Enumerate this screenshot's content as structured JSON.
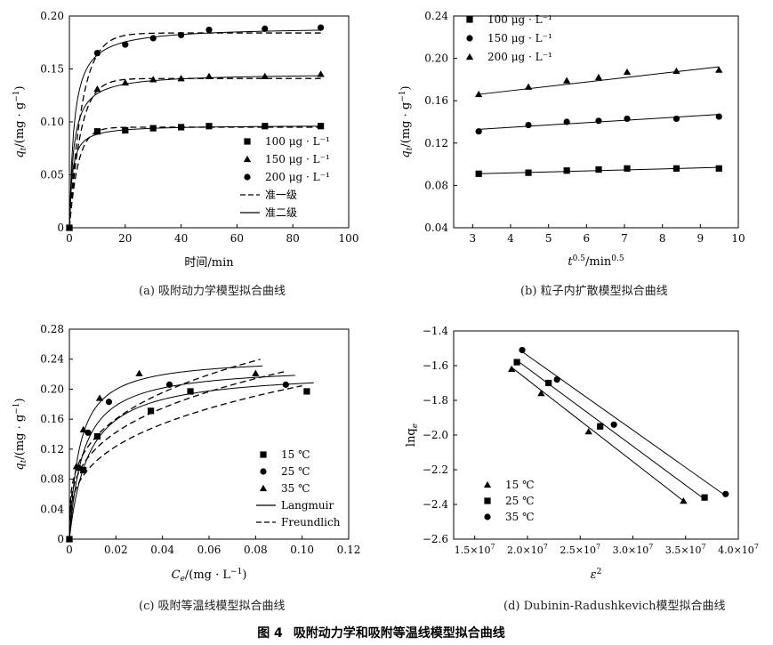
{
  "figure": {
    "number_label": "图 4",
    "title": "吸附动力学和吸附等温线模型拟合曲线"
  },
  "chart_data": [
    {
      "id": "a",
      "type": "line",
      "caption": "(a) 吸附动力学模型拟合曲线",
      "xlabel": "时间/min",
      "ylabel_main": "q",
      "ylabel_sub": "t",
      "ylabel_unit": "/(mg · g",
      "ylabel_sup": "−1",
      "ylabel_close": ")",
      "xlim": [
        0,
        100
      ],
      "ylim": [
        0,
        0.2
      ],
      "xticks": [
        0,
        20,
        40,
        60,
        80,
        100
      ],
      "xtick_labels": [
        "0",
        "20",
        "40",
        "60",
        "80",
        "100"
      ],
      "yticks": [
        0,
        0.05,
        0.1,
        0.15,
        0.2
      ],
      "ytick_labels": [
        "0",
        "0.05",
        "0.10",
        "0.15",
        "0.20"
      ],
      "legend_position": "lower-right",
      "legend": [
        {
          "marker": "square",
          "label": "100 μg · L⁻¹"
        },
        {
          "marker": "triangle",
          "label": "150 μg · L⁻¹"
        },
        {
          "marker": "circle",
          "label": "200 μg · L⁻¹"
        },
        {
          "line": "dashed",
          "label": "准一级"
        },
        {
          "line": "solid",
          "label": "准二级"
        }
      ],
      "series": [
        {
          "name": "100 μg · L⁻¹",
          "marker": "square",
          "points": [
            [
              0,
              0
            ],
            [
              10,
              0.091
            ],
            [
              20,
              0.092
            ],
            [
              30,
              0.094
            ],
            [
              40,
              0.095
            ],
            [
              50,
              0.096
            ],
            [
              70,
              0.096
            ],
            [
              90,
              0.096
            ]
          ],
          "pfo": {
            "qe": 0.095,
            "k": 0.32
          },
          "pso": {
            "qe": 0.097,
            "k": 10.5
          }
        },
        {
          "name": "150 μg · L⁻¹",
          "marker": "triangle",
          "points": [
            [
              0,
              0
            ],
            [
              10,
              0.131
            ],
            [
              20,
              0.137
            ],
            [
              30,
              0.14
            ],
            [
              40,
              0.141
            ],
            [
              50,
              0.143
            ],
            [
              70,
              0.143
            ],
            [
              90,
              0.145
            ]
          ],
          "pfo": {
            "qe": 0.141,
            "k": 0.25
          },
          "pso": {
            "qe": 0.146,
            "k": 4.5
          }
        },
        {
          "name": "200 μg · L⁻¹",
          "marker": "circle",
          "points": [
            [
              0,
              0
            ],
            [
              10,
              0.165
            ],
            [
              20,
              0.173
            ],
            [
              30,
              0.179
            ],
            [
              40,
              0.182
            ],
            [
              50,
              0.187
            ],
            [
              70,
              0.188
            ],
            [
              90,
              0.189
            ]
          ],
          "pfo": {
            "qe": 0.184,
            "k": 0.22
          },
          "pso": {
            "qe": 0.19,
            "k": 3.2
          }
        }
      ]
    },
    {
      "id": "b",
      "type": "scatter",
      "caption": "(b) 粒子内扩散模型拟合曲线",
      "xlabel_main": "t",
      "xlabel_sup": "0.5",
      "xlabel_rest": "/min",
      "xlabel_sup2": "0.5",
      "ylabel_main": "q",
      "ylabel_sub": "t",
      "ylabel_unit": "/(mg · g",
      "ylabel_sup": "−1",
      "ylabel_close": ")",
      "xlim": [
        2.5,
        10
      ],
      "ylim": [
        0.04,
        0.24
      ],
      "xticks": [
        3,
        4,
        5,
        6,
        7,
        8,
        9,
        10
      ],
      "xtick_labels": [
        "3",
        "4",
        "5",
        "6",
        "7",
        "8",
        "9",
        "10"
      ],
      "yticks": [
        0.04,
        0.08,
        0.12,
        0.16,
        0.2,
        0.24
      ],
      "ytick_labels": [
        "0.04",
        "0.08",
        "0.12",
        "0.16",
        "0.20",
        "0.24"
      ],
      "legend_position": "top-left",
      "legend": [
        {
          "marker": "square",
          "label": "100 μg · L⁻¹"
        },
        {
          "marker": "circle",
          "label": "150 μg · L⁻¹"
        },
        {
          "marker": "triangle",
          "label": "200 μg · L⁻¹"
        }
      ],
      "series": [
        {
          "name": "100 μg · L⁻¹",
          "marker": "square",
          "x": [
            3.16,
            4.47,
            5.48,
            6.32,
            7.07,
            8.37,
            9.49
          ],
          "y": [
            0.091,
            0.092,
            0.094,
            0.095,
            0.096,
            0.096,
            0.096
          ],
          "fit": [
            [
              3.16,
              0.091
            ],
            [
              9.49,
              0.097
            ]
          ]
        },
        {
          "name": "150 μg · L⁻¹",
          "marker": "circle",
          "x": [
            3.16,
            4.47,
            5.48,
            6.32,
            7.07,
            8.37,
            9.49
          ],
          "y": [
            0.131,
            0.137,
            0.14,
            0.141,
            0.143,
            0.143,
            0.145
          ],
          "fit": [
            [
              3.16,
              0.133
            ],
            [
              9.49,
              0.147
            ]
          ]
        },
        {
          "name": "200 μg · L⁻¹",
          "marker": "triangle",
          "x": [
            3.16,
            4.47,
            5.48,
            6.32,
            7.07,
            8.37,
            9.49
          ],
          "y": [
            0.166,
            0.173,
            0.179,
            0.182,
            0.187,
            0.188,
            0.189
          ],
          "fit": [
            [
              3.16,
              0.166
            ],
            [
              9.49,
              0.192
            ]
          ]
        }
      ]
    },
    {
      "id": "c",
      "type": "line",
      "caption": "(c) 吸附等温线模型拟合曲线",
      "xlabel_main": "C",
      "xlabel_sub": "e",
      "xlabel_unit": "/(mg · L",
      "xlabel_sup": "−1",
      "xlabel_close": ")",
      "ylabel_main": "q",
      "ylabel_sub": "t",
      "ylabel_unit": "/(mg · g",
      "ylabel_sup": "−1",
      "ylabel_close": ")",
      "xlim": [
        0,
        0.12
      ],
      "ylim": [
        0,
        0.28
      ],
      "xticks": [
        0,
        0.02,
        0.04,
        0.06,
        0.08,
        0.1,
        0.12
      ],
      "xtick_labels": [
        "0",
        "0.02",
        "0.04",
        "0.06",
        "0.08",
        "0.10",
        "0.12"
      ],
      "yticks": [
        0,
        0.04,
        0.08,
        0.12,
        0.16,
        0.2,
        0.24,
        0.28
      ],
      "ytick_labels": [
        "0",
        "0.04",
        "0.08",
        "0.12",
        "0.16",
        "0.20",
        "0.24",
        "0.28"
      ],
      "legend_position": "lower-right",
      "legend": [
        {
          "marker": "square",
          "label": "15 ℃"
        },
        {
          "marker": "circle",
          "label": "25 ℃"
        },
        {
          "marker": "triangle",
          "label": "35 ℃"
        },
        {
          "line": "solid",
          "label": "Langmuir"
        },
        {
          "line": "dashed",
          "label": "Freundlich"
        }
      ],
      "series": [
        {
          "name": "15 ℃",
          "marker": "square",
          "points": [
            [
              0,
              0
            ],
            [
              0.006,
              0.092
            ],
            [
              0.012,
              0.137
            ],
            [
              0.035,
              0.171
            ],
            [
              0.052,
              0.197
            ],
            [
              0.102,
              0.197
            ]
          ],
          "langmuir": {
            "qm": 0.225,
            "KL": 120,
            "xmax": 0.105
          },
          "freundlich": {
            "Kf": 0.42,
            "n": 3.2,
            "xmax": 0.1
          }
        },
        {
          "name": "25 ℃",
          "marker": "circle",
          "points": [
            [
              0,
              0
            ],
            [
              0.004,
              0.095
            ],
            [
              0.008,
              0.142
            ],
            [
              0.017,
              0.183
            ],
            [
              0.043,
              0.206
            ],
            [
              0.093,
              0.206
            ]
          ],
          "langmuir": {
            "qm": 0.232,
            "KL": 165,
            "xmax": 0.097
          },
          "freundlich": {
            "Kf": 0.45,
            "n": 3.4,
            "xmax": 0.093
          }
        },
        {
          "name": "35 ℃",
          "marker": "triangle",
          "points": [
            [
              0,
              0
            ],
            [
              0.003,
              0.097
            ],
            [
              0.006,
              0.146
            ],
            [
              0.013,
              0.188
            ],
            [
              0.03,
              0.221
            ],
            [
              0.08,
              0.221
            ]
          ],
          "langmuir": {
            "qm": 0.243,
            "KL": 230,
            "xmax": 0.083
          },
          "freundlich": {
            "Kf": 0.49,
            "n": 3.5,
            "xmax": 0.082
          }
        }
      ]
    },
    {
      "id": "d",
      "type": "scatter",
      "caption": "(d) Dubinin-Radushkevich模型拟合曲线",
      "xlabel_main": "ε",
      "xlabel_sup": "2",
      "ylabel_main": "lnq",
      "ylabel_sub": "e",
      "xlim": [
        13000000,
        40000000
      ],
      "ylim": [
        -2.6,
        -1.4
      ],
      "xticks": [
        15000000,
        20000000,
        25000000,
        30000000,
        35000000,
        40000000
      ],
      "xtick_mantissa": [
        "1.5×10",
        "2.0×10",
        "2.5×10",
        "3.0×10",
        "3.5×10",
        "4.0×10"
      ],
      "xtick_exponent": "7",
      "yticks": [
        -2.6,
        -2.4,
        -2.2,
        -2.0,
        -1.8,
        -1.6,
        -1.4
      ],
      "ytick_labels": [
        "−2.6",
        "−2.4",
        "−2.2",
        "−2.0",
        "−1.8",
        "−1.6",
        "−1.4"
      ],
      "legend_position": "lower-left",
      "legend": [
        {
          "marker": "triangle",
          "label": "15 ℃"
        },
        {
          "marker": "square",
          "label": "25 ℃"
        },
        {
          "marker": "circle",
          "label": "35 ℃"
        }
      ],
      "series": [
        {
          "name": "15 ℃",
          "marker": "triangle",
          "x": [
            18500000,
            21300000,
            25800000,
            34800000
          ],
          "y": [
            -1.62,
            -1.76,
            -1.98,
            -2.38
          ],
          "fit": [
            [
              18500000,
              -1.61
            ],
            [
              34800000,
              -2.38
            ]
          ]
        },
        {
          "name": "25 ℃",
          "marker": "square",
          "x": [
            19000000,
            22000000,
            26900000,
            36800000
          ],
          "y": [
            -1.58,
            -1.7,
            -1.95,
            -2.36
          ],
          "fit": [
            [
              19000000,
              -1.57
            ],
            [
              36800000,
              -2.37
            ]
          ]
        },
        {
          "name": "35 ℃",
          "marker": "circle",
          "x": [
            19500000,
            22800000,
            28200000,
            38800000
          ],
          "y": [
            -1.51,
            -1.68,
            -1.94,
            -2.34
          ],
          "fit": [
            [
              19500000,
              -1.52
            ],
            [
              38800000,
              -2.35
            ]
          ]
        }
      ]
    }
  ]
}
